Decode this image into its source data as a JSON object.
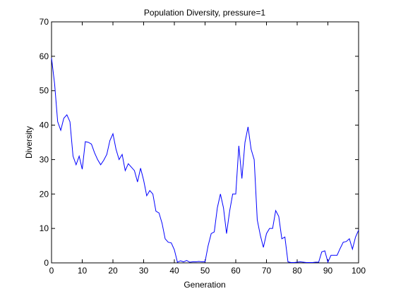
{
  "chart_data": {
    "type": "line",
    "title": "Population Diversity, pressure=1",
    "xlabel": "Generation",
    "ylabel": "Diversity",
    "xlim": [
      0,
      100
    ],
    "ylim": [
      0,
      70
    ],
    "xticks": [
      0,
      10,
      20,
      30,
      40,
      50,
      60,
      70,
      80,
      90,
      100
    ],
    "yticks": [
      0,
      10,
      20,
      30,
      40,
      50,
      60,
      70
    ],
    "grid": false,
    "line_color": "#0000ff",
    "series": [
      {
        "x": [
          0,
          1,
          2,
          3,
          4,
          5,
          6,
          7,
          8,
          9,
          10,
          11,
          12,
          13,
          14,
          15,
          16,
          17,
          18,
          19,
          20,
          21,
          22,
          23,
          24,
          25,
          26,
          27,
          28,
          29,
          30,
          31,
          32,
          33,
          34,
          35,
          36,
          37,
          38,
          39,
          40,
          41,
          42,
          43,
          44,
          45,
          46,
          47,
          48,
          49,
          50,
          51,
          52,
          53,
          54,
          55,
          56,
          57,
          58,
          59,
          60,
          61,
          62,
          63,
          64,
          65,
          66,
          67,
          68,
          69,
          70,
          71,
          72,
          73,
          74,
          75,
          76,
          77,
          78,
          79,
          80,
          81,
          82,
          83,
          84,
          85,
          86,
          87,
          88,
          89,
          90,
          91,
          92,
          93,
          94,
          95,
          96,
          97,
          98,
          99,
          100
        ],
        "y": [
          59.5,
          52,
          41,
          38.5,
          42,
          43,
          41,
          31,
          28.5,
          31,
          27.2,
          35.2,
          35,
          34.5,
          32,
          30,
          28.5,
          29.8,
          31.5,
          35.5,
          37.5,
          33,
          30,
          31.5,
          26.8,
          28.8,
          27.8,
          26.8,
          23.5,
          27.5,
          24,
          19.5,
          21,
          20,
          15,
          14.5,
          11.5,
          7,
          6,
          5.8,
          3.8,
          0.2,
          0.6,
          0.3,
          0.7,
          0.2,
          0.3,
          0.3,
          0.4,
          0.3,
          0.3,
          5,
          8.5,
          9,
          16,
          20,
          16,
          8.5,
          15,
          20,
          20,
          34,
          24.5,
          35,
          39.5,
          33,
          30,
          12.5,
          8,
          4.5,
          8.5,
          10,
          10,
          15.2,
          13.5,
          7,
          7.5,
          0.3,
          0.1,
          0.1,
          0.2,
          0.3,
          0.2,
          0.1,
          0.1,
          0.1,
          0.2,
          0.2,
          3.2,
          3.5,
          0.2,
          2.2,
          2.2,
          2.2,
          4.2,
          6,
          6.2,
          7,
          4,
          7.5,
          9.5
        ]
      }
    ]
  }
}
